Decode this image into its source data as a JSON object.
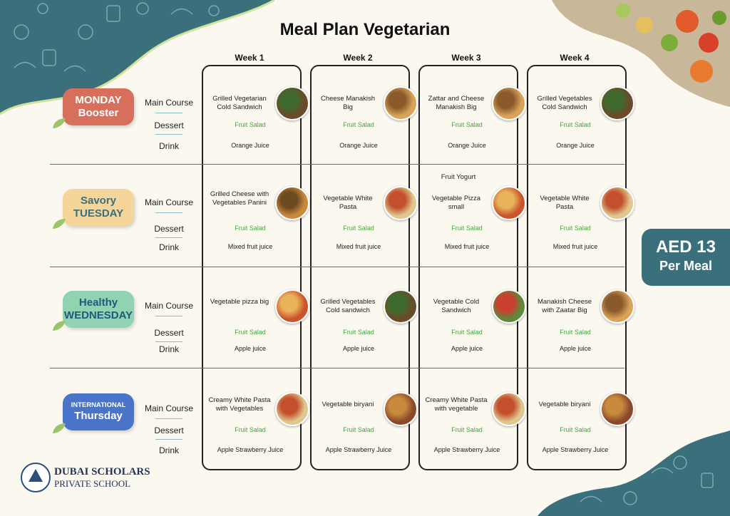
{
  "title": "Meal Plan Vegetarian",
  "weeks": [
    "Week 1",
    "Week 2",
    "Week 3",
    "Week 4"
  ],
  "row_labels": {
    "main": "Main Course",
    "dessert": "Dessert",
    "drink": "Drink"
  },
  "days": [
    {
      "line1": "MONDAY",
      "line2": "Booster",
      "color": "#d6705c",
      "cells": [
        {
          "main": "Grilled Vegetarian Cold Sandwich",
          "dessert": "Fruit Salad",
          "drink": "Orange Juice",
          "icon": "sandwich-photo"
        },
        {
          "main": "Cheese Manakish Big",
          "dessert": "Fruit Salad",
          "drink": "Orange Juice",
          "icon": "manakish-photo"
        },
        {
          "main": "Zattar and Cheese Manakish Big",
          "dessert": "Fruit Salad",
          "drink": "Orange Juice",
          "icon": "manakish-photo"
        },
        {
          "main": "Grilled Vegetables Cold Sandwich",
          "dessert": "Fruit Salad",
          "drink": "Orange Juice",
          "icon": "sandwich-photo"
        }
      ]
    },
    {
      "line1": "Savory",
      "line2": "TUESDAY",
      "color": "#f6d59a",
      "cells": [
        {
          "main": "Grilled Cheese with Vegetables Panini",
          "dessert": "Fruit Salad",
          "drink": "Mixed fruit juice",
          "icon": "panini-photo"
        },
        {
          "main": "Vegetable White Pasta",
          "dessert": "Fruit Salad",
          "drink": "Mixed fruit juice",
          "icon": "pasta-photo"
        },
        {
          "extra": "Fruit Yogurt",
          "main": "Vegetable Pizza small",
          "dessert": "Fruit Salad",
          "drink": "Mixed fruit juice",
          "icon": "pizza-photo"
        },
        {
          "main": "Vegetable White Pasta",
          "dessert": "Fruit Salad",
          "drink": "Mixed fruit juice",
          "icon": "pasta-photo"
        }
      ]
    },
    {
      "line1": "Healthy",
      "line2": "WEDNESDAY",
      "color": "#8fd3b1",
      "cells": [
        {
          "main": "Vegetable pizza big",
          "dessert": "Fruit Salad",
          "drink": "Apple juice",
          "icon": "pizza-photo"
        },
        {
          "main": "Grilled Vegetables Cold sandwich",
          "dessert": "Fruit Salad",
          "drink": "Apple juice",
          "icon": "sandwich-photo"
        },
        {
          "main": "Vegetable Cold Sandwich",
          "dessert": "Fruit Salad",
          "drink": "Apple juice",
          "icon": "salad-photo"
        },
        {
          "main": "Manakish Cheese with Zaatar Big",
          "dessert": "Fruit Salad",
          "drink": "Apple juice",
          "icon": "manakish-photo"
        }
      ]
    },
    {
      "line1": "INTERNATIONAL",
      "line2": "Thursday",
      "color": "#4a74c9",
      "cells": [
        {
          "main": "Creamy White Pasta with Vegetables",
          "dessert": "Fruit Salad",
          "drink": "Apple Strawberry Juice",
          "icon": "pasta-photo"
        },
        {
          "main": "Vegetable biryani",
          "dessert": "Fruit Salad",
          "drink": "Apple Strawberry Juice",
          "icon": "biryani-photo"
        },
        {
          "main": "Creamy White Pasta with vegetable",
          "dessert": "Fruit Salad",
          "drink": "Apple Strawberry Juice",
          "icon": "pasta-photo"
        },
        {
          "main": "Vegetable biryani",
          "dessert": "Fruit Salad",
          "drink": "Apple Strawberry Juice",
          "icon": "biryani-photo"
        }
      ]
    }
  ],
  "price": {
    "amount": "AED 13",
    "unit": "Per Meal"
  },
  "school": {
    "name": "DUBAI SCHOLARS",
    "sub": "PRIVATE SCHOOL"
  }
}
